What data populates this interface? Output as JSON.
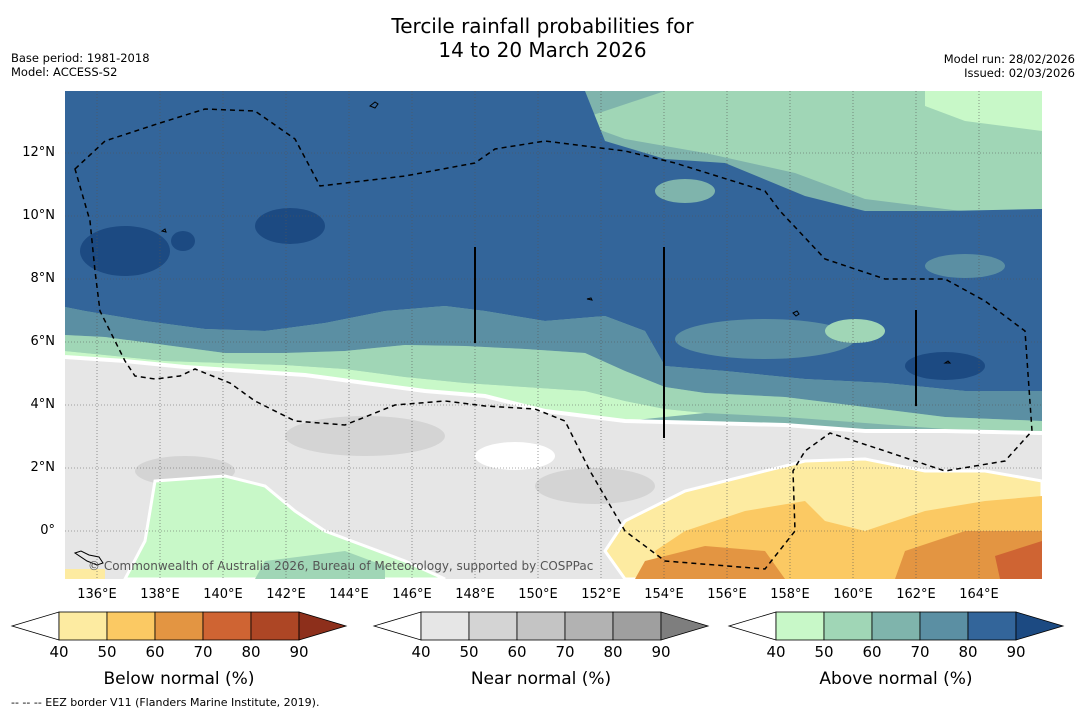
{
  "title": {
    "line1": "Tercile rainfall probabilities for",
    "line2": "14 to 20 March 2026"
  },
  "meta": {
    "base_period": "Base period: 1981-2018",
    "model": "Model: ACCESS-S2",
    "model_run": "Model run: 28/02/2026",
    "issued": "Issued: 02/03/2026"
  },
  "map": {
    "lat_labels": [
      "12°N",
      "10°N",
      "8°N",
      "6°N",
      "4°N",
      "2°N",
      "0°"
    ],
    "lon_labels": [
      "136°E",
      "138°E",
      "140°E",
      "142°E",
      "144°E",
      "146°E",
      "148°E",
      "150°E",
      "152°E",
      "154°E",
      "156°E",
      "158°E",
      "160°E",
      "162°E",
      "164°E"
    ],
    "lat_values": [
      12,
      10,
      8,
      6,
      4,
      2,
      0
    ],
    "lon_values": [
      136,
      138,
      140,
      142,
      144,
      146,
      148,
      150,
      152,
      154,
      156,
      158,
      160,
      162,
      164
    ],
    "copyright": "© Commonwealth of Australia 2026, Bureau of Meteorology, supported by COSPPac"
  },
  "colorbars": [
    {
      "label": "Below normal (%)",
      "ticks": [
        "40",
        "50",
        "60",
        "70",
        "80",
        "90"
      ],
      "colors": [
        "#ffffff",
        "#fdeba1",
        "#fbc963",
        "#e39542",
        "#cf6433",
        "#ad4625",
        "#8d2f1b"
      ]
    },
    {
      "label": "Near normal (%)",
      "ticks": [
        "40",
        "50",
        "60",
        "70",
        "80",
        "90"
      ],
      "colors": [
        "#ffffff",
        "#e6e6e6",
        "#d4d4d4",
        "#c4c4c4",
        "#b2b2b2",
        "#9f9f9f",
        "#7e7e7e"
      ]
    },
    {
      "label": "Above normal (%)",
      "ticks": [
        "40",
        "50",
        "60",
        "70",
        "80",
        "90"
      ],
      "colors": [
        "#ffffff",
        "#c8f8c8",
        "#a0d6b6",
        "#7fb4ac",
        "#5b8fa3",
        "#33659a",
        "#1c4a82"
      ]
    }
  ],
  "footnote": "-- -- -- EEZ border V11 (Flanders Marine Institute, 2019)."
}
